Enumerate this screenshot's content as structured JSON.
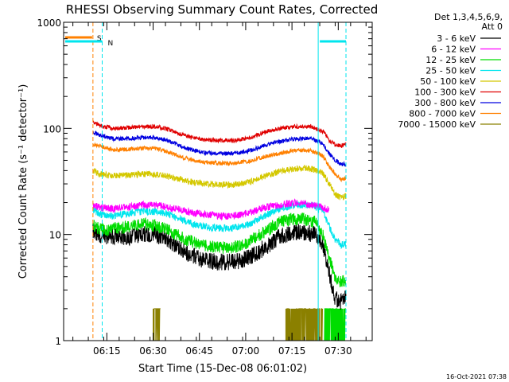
{
  "chart_data": {
    "type": "line",
    "title": "RHESSI Observing Summary Count Rates, Corrected",
    "xlabel": "Start Time (15-Dec-08 06:01:02)",
    "ylabel": "Corrected Count Rate (s⁻¹ detector⁻¹)",
    "yscale": "log",
    "ylim": [
      1,
      1000
    ],
    "xlim_minutes": [
      0,
      100
    ],
    "x_ticks": [
      {
        "minute": 14,
        "label": "06:15"
      },
      {
        "minute": 29,
        "label": "06:30"
      },
      {
        "minute": 44,
        "label": "06:45"
      },
      {
        "minute": 59,
        "label": "07:00"
      },
      {
        "minute": 74,
        "label": "07:15"
      },
      {
        "minute": 89,
        "label": "07:30"
      }
    ],
    "y_ticks": [
      {
        "value": 1,
        "label": "1"
      },
      {
        "value": 10,
        "label": "10"
      },
      {
        "value": 100,
        "label": "100"
      },
      {
        "value": 1000,
        "label": "1000"
      }
    ],
    "legend": {
      "placement": "right",
      "header": [
        "Det 1,3,4,5,6,9,",
        "Att 0"
      ],
      "entries": [
        {
          "label": "3 - 6 keV",
          "color": "#000000"
        },
        {
          "label": "6 - 12 keV",
          "color": "#ff00ff"
        },
        {
          "label": "12 - 25 keV",
          "color": "#00dd00"
        },
        {
          "label": "25 - 50 keV",
          "color": "#00e5ee"
        },
        {
          "label": "50 - 100 keV",
          "color": "#d4c800"
        },
        {
          "label": "100 - 300 keV",
          "color": "#e00000"
        },
        {
          "label": "300 - 800 keV",
          "color": "#0000e0"
        },
        {
          "label": "800 - 7000 keV",
          "color": "#ff8000"
        },
        {
          "label": "7000 - 15000 keV",
          "color": "#8b8000"
        }
      ]
    },
    "series": [
      {
        "name": "3 - 6 keV",
        "color": "#000000",
        "noise": 0.08,
        "points": [
          [
            9.5,
            11
          ],
          [
            11,
            10
          ],
          [
            14,
            9.5
          ],
          [
            18,
            9.5
          ],
          [
            22,
            9.5
          ],
          [
            26,
            10
          ],
          [
            30,
            10
          ],
          [
            33,
            9
          ],
          [
            37,
            7.5
          ],
          [
            41,
            6.5
          ],
          [
            45,
            5.8
          ],
          [
            50,
            5.5
          ],
          [
            55,
            5.5
          ],
          [
            60,
            6
          ],
          [
            65,
            7.5
          ],
          [
            70,
            9.5
          ],
          [
            74,
            10.5
          ],
          [
            78,
            10.5
          ],
          [
            82,
            10
          ],
          [
            84,
            8
          ],
          [
            86,
            4.5
          ],
          [
            88,
            2.5
          ],
          [
            90,
            2.3
          ],
          [
            91.5,
            2.6
          ]
        ]
      },
      {
        "name": "6 - 12 keV",
        "color": "#ff00ff",
        "noise": 0.035,
        "points": [
          [
            9.5,
            19
          ],
          [
            12,
            18
          ],
          [
            15,
            17.5
          ],
          [
            20,
            18
          ],
          [
            25,
            19
          ],
          [
            30,
            19
          ],
          [
            34,
            18
          ],
          [
            38,
            17
          ],
          [
            42,
            16
          ],
          [
            46,
            15.5
          ],
          [
            50,
            15
          ],
          [
            55,
            15
          ],
          [
            60,
            16
          ],
          [
            65,
            18
          ],
          [
            70,
            19
          ],
          [
            75,
            20
          ],
          [
            80,
            19
          ],
          [
            84,
            18
          ],
          [
            86,
            17
          ]
        ]
      },
      {
        "name": "12 - 25 keV",
        "color": "#00dd00",
        "noise": 0.06,
        "points": [
          [
            9.5,
            12.5
          ],
          [
            11,
            11.5
          ],
          [
            14,
            11
          ],
          [
            18,
            11.5
          ],
          [
            22,
            12
          ],
          [
            26,
            12.5
          ],
          [
            30,
            12
          ],
          [
            34,
            11
          ],
          [
            38,
            9.5
          ],
          [
            42,
            8.5
          ],
          [
            46,
            7.8
          ],
          [
            50,
            7.5
          ],
          [
            55,
            7.5
          ],
          [
            60,
            8.5
          ],
          [
            65,
            10.5
          ],
          [
            70,
            13
          ],
          [
            74,
            14
          ],
          [
            78,
            14
          ],
          [
            82,
            13
          ],
          [
            84,
            10
          ],
          [
            86,
            6
          ],
          [
            88,
            4
          ],
          [
            90,
            3.5
          ],
          [
            91.5,
            3.8
          ]
        ]
      },
      {
        "name": "25 - 50 keV",
        "color": "#00e5ee",
        "noise": 0.035,
        "points": [
          [
            9.5,
            17
          ],
          [
            12,
            15.5
          ],
          [
            15,
            15
          ],
          [
            20,
            15.5
          ],
          [
            25,
            16.5
          ],
          [
            30,
            16.5
          ],
          [
            34,
            15.5
          ],
          [
            38,
            14
          ],
          [
            42,
            12.5
          ],
          [
            46,
            11.8
          ],
          [
            50,
            11.5
          ],
          [
            55,
            11.5
          ],
          [
            60,
            12.5
          ],
          [
            65,
            15
          ],
          [
            70,
            17.5
          ],
          [
            75,
            19
          ],
          [
            80,
            19
          ],
          [
            84,
            17
          ],
          [
            86,
            12
          ],
          [
            88,
            9
          ],
          [
            90,
            8
          ],
          [
            91.5,
            8.2
          ]
        ]
      },
      {
        "name": "50 - 100 keV",
        "color": "#d4c800",
        "noise": 0.03,
        "points": [
          [
            9.5,
            40
          ],
          [
            12,
            37
          ],
          [
            15,
            36
          ],
          [
            20,
            36
          ],
          [
            25,
            37
          ],
          [
            30,
            37
          ],
          [
            34,
            35
          ],
          [
            38,
            33
          ],
          [
            42,
            31
          ],
          [
            46,
            30
          ],
          [
            50,
            29.5
          ],
          [
            55,
            29.5
          ],
          [
            60,
            31
          ],
          [
            65,
            35
          ],
          [
            70,
            39
          ],
          [
            75,
            42
          ],
          [
            80,
            42
          ],
          [
            84,
            38
          ],
          [
            86,
            30
          ],
          [
            88,
            24
          ],
          [
            90,
            22
          ],
          [
            91.5,
            23
          ]
        ]
      },
      {
        "name": "100 - 300 keV",
        "color": "#e00000",
        "noise": 0.02,
        "points": [
          [
            9.5,
            113
          ],
          [
            12,
            106
          ],
          [
            16,
            100
          ],
          [
            20,
            101
          ],
          [
            25,
            104
          ],
          [
            30,
            104
          ],
          [
            34,
            98
          ],
          [
            38,
            88
          ],
          [
            42,
            81
          ],
          [
            46,
            78
          ],
          [
            50,
            77
          ],
          [
            55,
            77
          ],
          [
            60,
            81
          ],
          [
            65,
            92
          ],
          [
            70,
            100
          ],
          [
            75,
            104
          ],
          [
            80,
            104
          ],
          [
            84,
            94
          ],
          [
            86,
            78
          ],
          [
            88,
            70
          ],
          [
            90,
            68
          ],
          [
            91.5,
            72
          ]
        ]
      },
      {
        "name": "300 - 800 keV",
        "color": "#0000e0",
        "noise": 0.02,
        "points": [
          [
            9.5,
            92
          ],
          [
            12,
            86
          ],
          [
            16,
            80
          ],
          [
            20,
            80
          ],
          [
            25,
            82
          ],
          [
            30,
            82
          ],
          [
            34,
            76
          ],
          [
            38,
            68
          ],
          [
            42,
            62
          ],
          [
            46,
            59
          ],
          [
            50,
            58
          ],
          [
            55,
            58
          ],
          [
            60,
            61
          ],
          [
            65,
            69
          ],
          [
            70,
            75
          ],
          [
            75,
            80
          ],
          [
            80,
            80
          ],
          [
            84,
            72
          ],
          [
            86,
            58
          ],
          [
            88,
            50
          ],
          [
            90,
            46
          ],
          [
            91.5,
            46
          ]
        ]
      },
      {
        "name": "800 - 7000 keV",
        "color": "#ff8000",
        "noise": 0.02,
        "points": [
          [
            9.5,
            72
          ],
          [
            12,
            67
          ],
          [
            16,
            63
          ],
          [
            20,
            63
          ],
          [
            25,
            65
          ],
          [
            30,
            65
          ],
          [
            34,
            60
          ],
          [
            38,
            54
          ],
          [
            42,
            50
          ],
          [
            46,
            48
          ],
          [
            50,
            47
          ],
          [
            55,
            47
          ],
          [
            60,
            49
          ],
          [
            65,
            54
          ],
          [
            70,
            58
          ],
          [
            75,
            62
          ],
          [
            80,
            62
          ],
          [
            84,
            55
          ],
          [
            86,
            44
          ],
          [
            88,
            37
          ],
          [
            90,
            33
          ],
          [
            91.5,
            34
          ]
        ]
      }
    ],
    "bursts": {
      "name": "7000 - 15000 keV",
      "color": "#8b8000",
      "levels": [
        1,
        2
      ],
      "intervals": [
        [
          29,
          31.5
        ],
        [
          72,
          84
        ]
      ]
    },
    "extra_bursts": {
      "color": "#00dd00",
      "levels": [
        1,
        2
      ],
      "intervals": [
        [
          84.5,
          91.5
        ]
      ]
    },
    "annotations": {
      "saa": {
        "label": "S",
        "start_minute": 0,
        "end_minute": 9.5,
        "color": "#ff8000"
      },
      "night": {
        "label": "N",
        "color": "#00e5ee",
        "intervals": [
          {
            "start_minute": 0,
            "end_minute": 12.5
          },
          {
            "start_minute": 82.5,
            "end_minute": 91.5
          }
        ]
      }
    },
    "footer_timestamp": "16-Oct-2021 07:38"
  }
}
